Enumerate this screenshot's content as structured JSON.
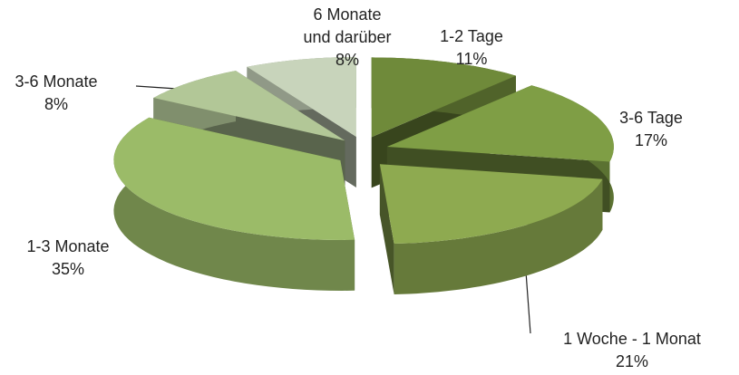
{
  "chart_data": {
    "type": "pie3d",
    "categories": [
      "1-2 Tage",
      "3-6 Tage",
      "1 Woche - 1 Monat",
      "1-3 Monate",
      "3-6 Monate",
      "6 Monate und darüber"
    ],
    "values": [
      11,
      17,
      21,
      35,
      8,
      8
    ],
    "value_labels": [
      "11%",
      "17%",
      "21%",
      "35%",
      "8%",
      "8%"
    ],
    "colors": [
      "#6f8a3a",
      "#7f9e45",
      "#8eaa50",
      "#9bbb68",
      "#b2c797",
      "#c8d4bb"
    ]
  }
}
